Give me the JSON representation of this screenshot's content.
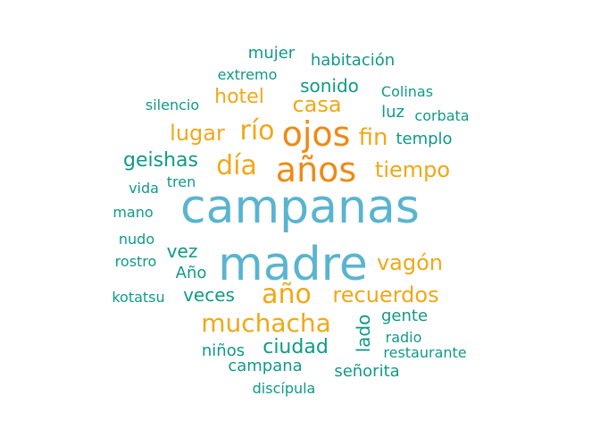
{
  "colors": {
    "blue": "#5ab4d0",
    "orange": "#ef8a14",
    "gold": "#f0a818",
    "green": "#0f9a86"
  },
  "words": [
    {
      "text": "campanas",
      "color": "blue"
    },
    {
      "text": "madre",
      "color": "blue"
    },
    {
      "text": "años",
      "color": "orange"
    },
    {
      "text": "ojos",
      "color": "orange"
    },
    {
      "text": "año",
      "color": "gold"
    },
    {
      "text": "muchacha",
      "color": "gold"
    },
    {
      "text": "recuerdos",
      "color": "gold"
    },
    {
      "text": "río",
      "color": "gold"
    },
    {
      "text": "día",
      "color": "gold"
    },
    {
      "text": "tiempo",
      "color": "gold"
    },
    {
      "text": "fin",
      "color": "gold"
    },
    {
      "text": "lugar",
      "color": "gold"
    },
    {
      "text": "vagón",
      "color": "gold"
    },
    {
      "text": "casa",
      "color": "gold"
    },
    {
      "text": "hotel",
      "color": "gold"
    },
    {
      "text": "sonido",
      "color": "green"
    },
    {
      "text": "geishas",
      "color": "green"
    },
    {
      "text": "ciudad",
      "color": "green"
    },
    {
      "text": "veces",
      "color": "green"
    },
    {
      "text": "vez",
      "color": "green"
    },
    {
      "text": "mujer",
      "color": "green"
    },
    {
      "text": "habitación",
      "color": "green"
    },
    {
      "text": "templo",
      "color": "green"
    },
    {
      "text": "Colinas",
      "color": "green"
    },
    {
      "text": "luz",
      "color": "green"
    },
    {
      "text": "corbata",
      "color": "green"
    },
    {
      "text": "extremo",
      "color": "green"
    },
    {
      "text": "silencio",
      "color": "green"
    },
    {
      "text": "vida",
      "color": "green"
    },
    {
      "text": "tren",
      "color": "green"
    },
    {
      "text": "mano",
      "color": "green"
    },
    {
      "text": "nudo",
      "color": "green"
    },
    {
      "text": "rostro",
      "color": "green"
    },
    {
      "text": "Año",
      "color": "green"
    },
    {
      "text": "kotatsu",
      "color": "green"
    },
    {
      "text": "lado",
      "color": "green"
    },
    {
      "text": "gente",
      "color": "green"
    },
    {
      "text": "radio",
      "color": "green"
    },
    {
      "text": "restaurante",
      "color": "green"
    },
    {
      "text": "niños",
      "color": "green"
    },
    {
      "text": "campana",
      "color": "green"
    },
    {
      "text": "señorita",
      "color": "green"
    },
    {
      "text": "discípula",
      "color": "green"
    }
  ]
}
